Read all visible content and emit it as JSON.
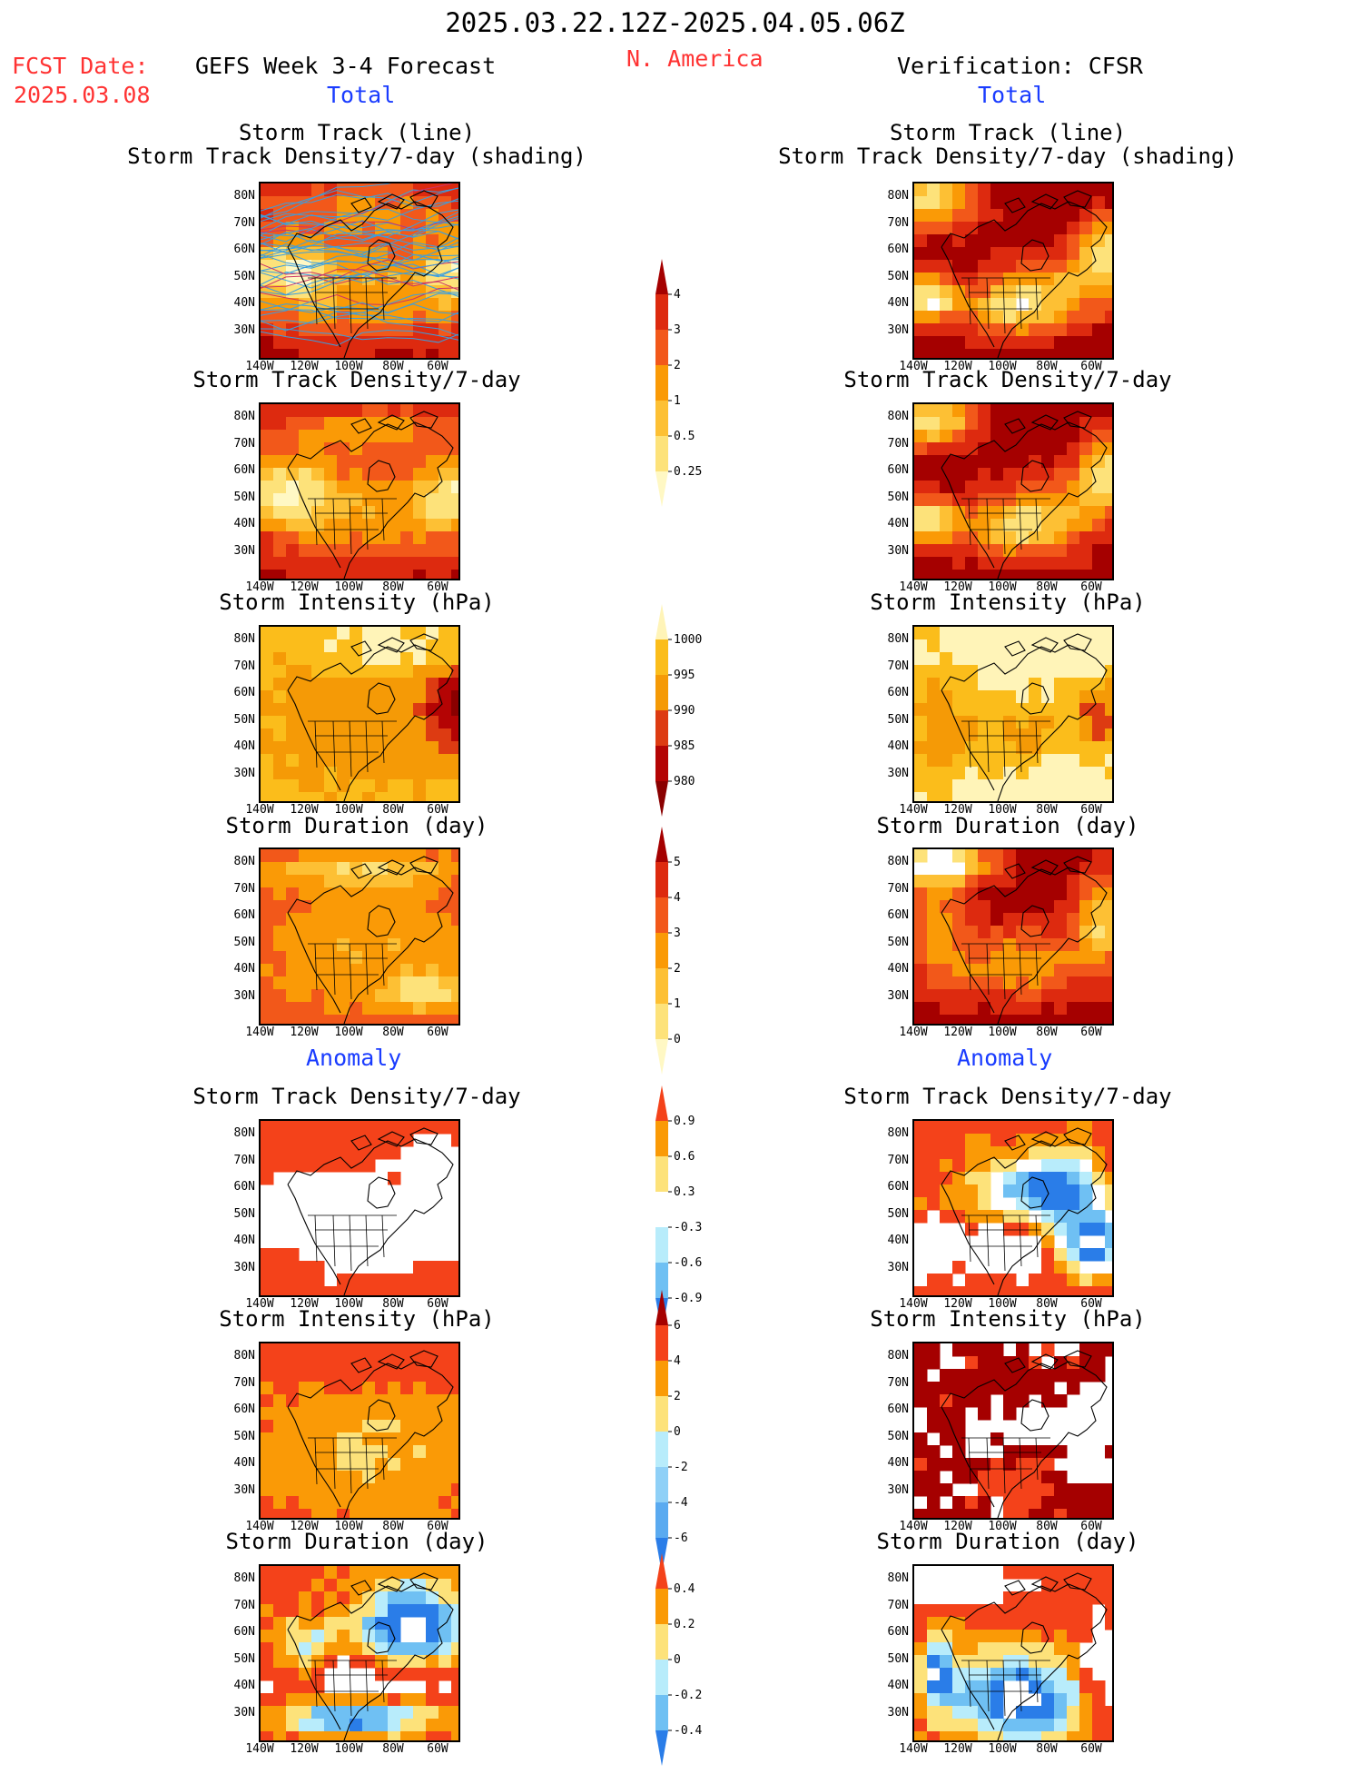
{
  "header": {
    "period": "2025.03.22.12Z-2025.04.05.06Z",
    "fcst_label": "FCST Date:",
    "fcst_date": "2025.03.08",
    "model": "GEFS Week 3-4 Forecast",
    "region": "N. America",
    "verification": "Verification: CFSR",
    "total_left": "Total",
    "total_right": "Total",
    "anomaly_left": "Anomaly",
    "anomaly_right": "Anomaly"
  },
  "panel_titles": {
    "track_line": "Storm Track (line)",
    "track_shading": "Storm Track Density/7-day (shading)",
    "density": "Storm Track Density/7-day",
    "intensity": "Storm Intensity (hPa)",
    "duration": "Storm Duration (day)"
  },
  "axes": {
    "lat_labels": [
      "80N",
      "70N",
      "60N",
      "50N",
      "40N",
      "30N"
    ],
    "lon_labels": [
      "140W",
      "120W",
      "100W",
      "80W",
      "60W"
    ]
  },
  "colorbars": {
    "density_total": {
      "labels": [
        "4",
        "3",
        "2",
        "1",
        "0.5",
        "0.25"
      ],
      "colors": [
        "#a50000",
        "#dd2a0f",
        "#f2581a",
        "#fa9a06",
        "#fdc034",
        "#fde27a",
        "#fff8c4"
      ]
    },
    "intensity_total": {
      "labels": [
        "1000",
        "995",
        "990",
        "985",
        "980"
      ],
      "colors": [
        "#fff4b8",
        "#fbbd1b",
        "#f59a06",
        "#dd3b12",
        "#b40404",
        "#8a0000"
      ]
    },
    "duration_total": {
      "labels": [
        "5",
        "4",
        "3",
        "2",
        "1",
        "0"
      ],
      "colors": [
        "#a50000",
        "#dd2a0f",
        "#f2581a",
        "#fa9a06",
        "#fdc034",
        "#fde27a",
        "#fff8c4"
      ]
    },
    "density_anom": {
      "labels": [
        "0.9",
        "0.6",
        "0.3",
        "-0.3",
        "-0.6",
        "-0.9"
      ],
      "colors": [
        "#f4421a",
        "#fa9a06",
        "#fde27a",
        "#ffffff",
        "#b8ecfb",
        "#6fc0f3",
        "#2a7de8"
      ]
    },
    "intensity_anom": {
      "labels": [
        "6",
        "4",
        "2",
        "0",
        "-2",
        "-4",
        "-6"
      ],
      "colors": [
        "#a50000",
        "#f4421a",
        "#fa9a06",
        "#fde27a",
        "#b8ecfb",
        "#8fd0f7",
        "#5aaaf0",
        "#2a7de8"
      ]
    },
    "duration_anom": {
      "labels": [
        "0.4",
        "0.2",
        "0",
        "-0.2",
        "-0.4"
      ],
      "colors": [
        "#f4421a",
        "#fa9a06",
        "#fde27a",
        "#b8ecfb",
        "#6fc0f3",
        "#2a7de8"
      ]
    }
  },
  "colors": {
    "red_text": "#ff3333",
    "blue_text": "#1a3cff",
    "track_line": "#3a9ee0"
  }
}
